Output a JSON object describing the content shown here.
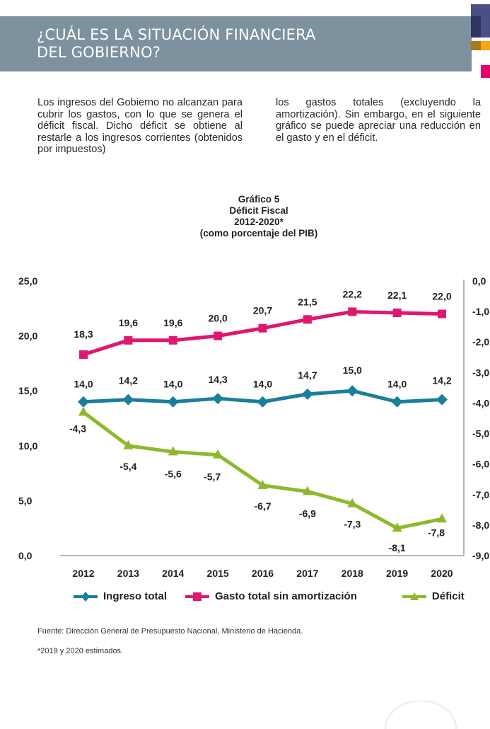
{
  "header": {
    "title_line1": "¿CUÁL ES LA SITUACIÓN FINANCIERA",
    "title_line2": "DEL GOBIERNO?",
    "banner_color": "#7d929e",
    "deco_colors": [
      "#4a4f86",
      "#f3a712",
      "#e5006d"
    ]
  },
  "intro": {
    "left": "Los ingresos del Gobierno no alcanzan para cubrir los gastos, con lo que se genera el déficit fiscal. Dicho déficit se obtiene al restarle a los ingresos corrientes (obtenidos por impuestos)",
    "right": "los gastos totales (excluyendo la amortización). Sin embargo, en el siguiente gráfico se puede apreciar una reducción en el gasto y en el déficit."
  },
  "chart_data": {
    "type": "line",
    "title": "Gráfico 5",
    "subtitle": "Déficit Fiscal",
    "period": "2012-2020*",
    "units_note": "(como porcentaje del PIB)",
    "categories": [
      "2012",
      "2013",
      "2014",
      "2015",
      "2016",
      "2017",
      "2018",
      "2019",
      "2020"
    ],
    "y_left": {
      "range": [
        0,
        25
      ],
      "ticks": [
        "0,0",
        "5,0",
        "10,0",
        "15,0",
        "20,0",
        "25,0"
      ],
      "tick_values": [
        0,
        5,
        10,
        15,
        20,
        25
      ]
    },
    "y_right": {
      "range": [
        -9,
        0
      ],
      "ticks": [
        "0,0",
        "-1,0",
        "-2,0",
        "-3,0",
        "-4,0",
        "-5,0",
        "-6,0",
        "-7,0",
        "-8,0",
        "-9,0"
      ],
      "tick_values": [
        0,
        -1,
        -2,
        -3,
        -4,
        -5,
        -6,
        -7,
        -8,
        -9
      ]
    },
    "grid": false,
    "legend_position": "bottom",
    "series": [
      {
        "name": "Ingreso total",
        "axis": "left",
        "marker": "diamond",
        "color": "#1a7f9a",
        "values": [
          14.0,
          14.2,
          14.0,
          14.3,
          14.0,
          14.7,
          15.0,
          14.0,
          14.2
        ],
        "labels": [
          "14,0",
          "14,2",
          "14,0",
          "14,3",
          "14,0",
          "14,7",
          "15,0",
          "14,0",
          "14,2"
        ]
      },
      {
        "name": "Gasto total sin amortización",
        "axis": "left",
        "marker": "square",
        "color": "#e0176e",
        "values": [
          18.3,
          19.6,
          19.6,
          20.0,
          20.7,
          21.5,
          22.2,
          22.1,
          22.0
        ],
        "labels": [
          "18,3",
          "19,6",
          "19,6",
          "20,0",
          "20,7",
          "21,5",
          "22,2",
          "22,1",
          "22,0"
        ]
      },
      {
        "name": "Déficit",
        "axis": "right",
        "marker": "triangle",
        "color": "#8db92e",
        "values": [
          -4.3,
          -5.4,
          -5.6,
          -5.7,
          -6.7,
          -6.9,
          -7.3,
          -8.1,
          -7.8
        ],
        "labels": [
          "-4,3",
          "-5,4",
          "-5,6",
          "-5,7",
          "-6,7",
          "-6,9",
          "-7,3",
          "-8,1",
          "-7,8"
        ]
      }
    ]
  },
  "footer": {
    "source": "Fuente: Dirección General de Presupuesto Nacional, Ministerio de Hacienda.",
    "note": "*2019 y 2020 estimados."
  }
}
